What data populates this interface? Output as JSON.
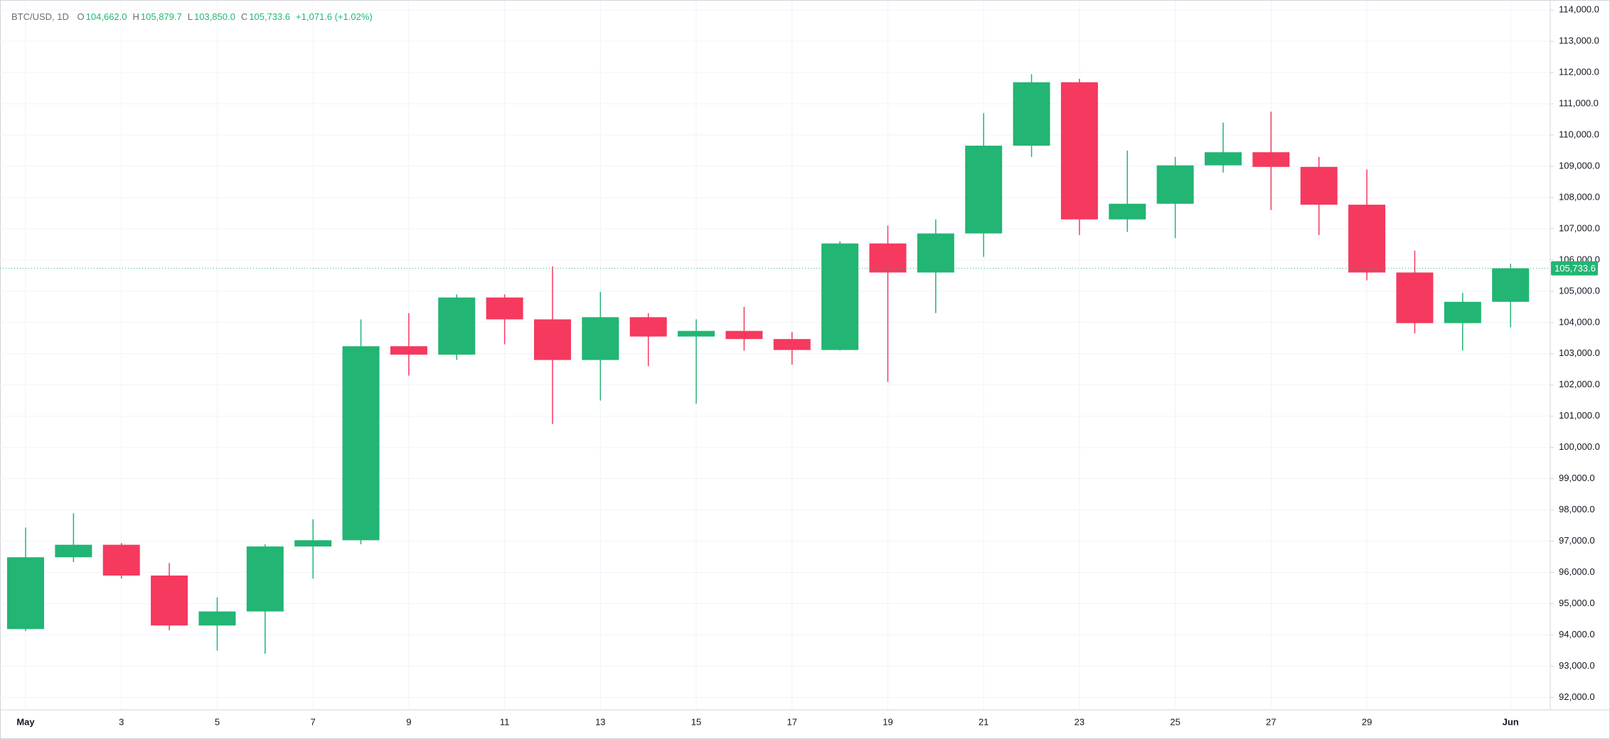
{
  "chart_data": {
    "type": "candlestick",
    "symbol": "BTC/USD, 1D",
    "legend": [
      {
        "label": "O",
        "value": "104,662.0"
      },
      {
        "label": "H",
        "value": "105,879.7"
      },
      {
        "label": "L",
        "value": "103,850.0"
      },
      {
        "label": "C",
        "value": "105,733.6"
      }
    ],
    "change": "+1,071.6 (+1.02%)",
    "categories": [
      "May",
      null,
      "3",
      null,
      "5",
      null,
      "7",
      null,
      "9",
      null,
      "11",
      null,
      "13",
      null,
      "15",
      null,
      "17",
      null,
      "19",
      null,
      "21",
      null,
      "23",
      null,
      "25",
      null,
      "27",
      null,
      "29",
      null,
      null,
      "Jun"
    ],
    "open": [
      94186,
      96485,
      96885,
      95900,
      94300,
      94750,
      96830,
      97030,
      103240,
      102970,
      104800,
      104100,
      102800,
      104170,
      103550,
      103730,
      103470,
      103120,
      106530,
      105600,
      106850,
      109660,
      111690,
      107300,
      107800,
      109030,
      109450,
      108980,
      107770,
      105600,
      103980,
      104662
    ],
    "high": [
      97437,
      97895,
      96940,
      96300,
      95200,
      96900,
      97700,
      104100,
      104300,
      104900,
      104900,
      105800,
      104980,
      104300,
      104100,
      104500,
      103700,
      106600,
      107100,
      107300,
      110700,
      111950,
      111800,
      109500,
      109300,
      110400,
      110750,
      109300,
      108900,
      106300,
      104950,
      105879.7
    ],
    "low": [
      94121,
      96331,
      95800,
      94150,
      93500,
      93400,
      95800,
      96900,
      102300,
      102800,
      103300,
      100750,
      101500,
      102600,
      101400,
      103100,
      102650,
      103100,
      102100,
      104300,
      106100,
      109300,
      106800,
      106900,
      106700,
      108800,
      107600,
      106800,
      105350,
      103650,
      103100,
      103850
    ],
    "close": [
      96485,
      96885,
      95900,
      94300,
      94750,
      96830,
      97030,
      103240,
      102970,
      104800,
      104100,
      102800,
      104170,
      103550,
      103730,
      103470,
      103120,
      106530,
      105600,
      106850,
      109660,
      111690,
      107300,
      107800,
      109030,
      109450,
      108980,
      107770,
      105600,
      103980,
      104662,
      105733.6
    ],
    "up_color": "#22b573",
    "down_color": "#f5395f",
    "last_price": {
      "value": 105733.6,
      "label": "105,733.6"
    },
    "ylim": [
      91600,
      114300
    ],
    "yticks": [
      {
        "value": 92000,
        "label": "92,000.0"
      },
      {
        "value": 93000,
        "label": "93,000.0"
      },
      {
        "value": 94000,
        "label": "94,000.0"
      },
      {
        "value": 95000,
        "label": "95,000.0"
      },
      {
        "value": 96000,
        "label": "96,000.0"
      },
      {
        "value": 97000,
        "label": "97,000.0"
      },
      {
        "value": 98000,
        "label": "98,000.0"
      },
      {
        "value": 99000,
        "label": "99,000.0"
      },
      {
        "value": 100000,
        "label": "100,000.0"
      },
      {
        "value": 101000,
        "label": "101,000.0"
      },
      {
        "value": 102000,
        "label": "102,000.0"
      },
      {
        "value": 103000,
        "label": "103,000.0"
      },
      {
        "value": 104000,
        "label": "104,000.0"
      },
      {
        "value": 105000,
        "label": "105,000.0"
      },
      {
        "value": 106000,
        "label": "106,000.0"
      },
      {
        "value": 107000,
        "label": "107,000.0"
      },
      {
        "value": 108000,
        "label": "108,000.0"
      },
      {
        "value": 109000,
        "label": "109,000.0"
      },
      {
        "value": 110000,
        "label": "110,000.0"
      },
      {
        "value": 111000,
        "label": "111,000.0"
      },
      {
        "value": 112000,
        "label": "112,000.0"
      },
      {
        "value": 113000,
        "label": "113,000.0"
      },
      {
        "value": 114000,
        "label": "114,000.0"
      }
    ],
    "grid": true
  }
}
